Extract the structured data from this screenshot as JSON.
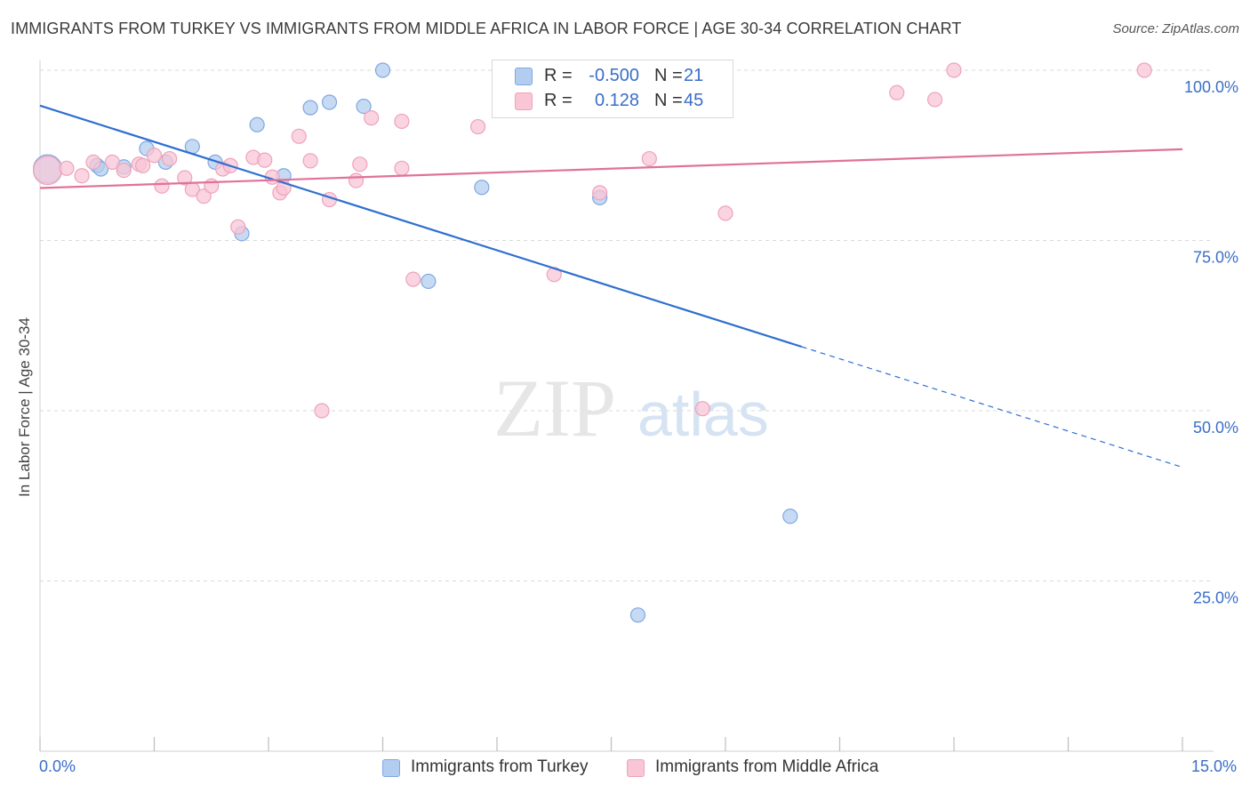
{
  "header": {
    "title": "IMMIGRANTS FROM TURKEY VS IMMIGRANTS FROM MIDDLE AFRICA IN LABOR FORCE | AGE 30-34 CORRELATION CHART",
    "source": "Source: ZipAtlas.com"
  },
  "watermark": {
    "zip": "ZIP",
    "atlas": "atlas"
  },
  "legend": {
    "r_label": "R =",
    "n_label": "N =",
    "rows": [
      {
        "r": "-0.500",
        "n": "21"
      },
      {
        "r": "0.128",
        "n": "45"
      }
    ]
  },
  "colors": {
    "blue_fill": "#b3cdf0",
    "blue_stroke": "#7fa8e0",
    "blue_line": "#2f6fd0",
    "pink_fill": "#f8c6d5",
    "pink_stroke": "#eea3bb",
    "pink_line": "#e0729a",
    "grid": "#d9d9d9",
    "axis_text": "#3a6ec9"
  },
  "chart_data": {
    "type": "scatter",
    "title": "IMMIGRANTS FROM TURKEY VS IMMIGRANTS FROM MIDDLE AFRICA IN LABOR FORCE | AGE 30-34 CORRELATION CHART",
    "xlabel": "",
    "ylabel": "In Labor Force | Age 30-34",
    "xlim": [
      0,
      15
    ],
    "ylim": [
      0,
      100
    ],
    "x_tick_labels": [
      "0.0%",
      "15.0%"
    ],
    "y_ticks": [
      25,
      50,
      75,
      100
    ],
    "y_tick_labels": [
      "25.0%",
      "50.0%",
      "75.0%",
      "100.0%"
    ],
    "grid": true,
    "series": [
      {
        "name": "Immigrants from Turkey",
        "color": "blue",
        "r": -0.5,
        "n": 21,
        "points": [
          {
            "x": 0.1,
            "y": 85.5,
            "big": true
          },
          {
            "x": 0.75,
            "y": 86.0
          },
          {
            "x": 0.8,
            "y": 85.5
          },
          {
            "x": 1.1,
            "y": 85.8
          },
          {
            "x": 1.4,
            "y": 88.5
          },
          {
            "x": 1.65,
            "y": 86.5
          },
          {
            "x": 2.0,
            "y": 88.8
          },
          {
            "x": 2.3,
            "y": 86.5
          },
          {
            "x": 2.65,
            "y": 76.0
          },
          {
            "x": 2.85,
            "y": 92.0
          },
          {
            "x": 3.2,
            "y": 84.5
          },
          {
            "x": 3.55,
            "y": 94.5
          },
          {
            "x": 3.8,
            "y": 95.3
          },
          {
            "x": 4.25,
            "y": 94.7
          },
          {
            "x": 4.5,
            "y": 100.0
          },
          {
            "x": 5.1,
            "y": 69.0
          },
          {
            "x": 5.8,
            "y": 82.8
          },
          {
            "x": 7.35,
            "y": 81.3
          },
          {
            "x": 8.5,
            "y": 100.0
          },
          {
            "x": 9.85,
            "y": 34.5
          },
          {
            "x": 7.85,
            "y": 20.0
          }
        ],
        "trend": {
          "x0": 0,
          "y0": 94.8,
          "x1": 10.0,
          "y1": 59.4,
          "dash_x1": 15,
          "dash_y1": 41.7
        }
      },
      {
        "name": "Immigrants from Middle Africa",
        "color": "pink",
        "r": 0.128,
        "n": 45,
        "points": [
          {
            "x": 0.1,
            "y": 85.3,
            "big": true
          },
          {
            "x": 0.35,
            "y": 85.6
          },
          {
            "x": 0.55,
            "y": 84.5
          },
          {
            "x": 0.7,
            "y": 86.5
          },
          {
            "x": 0.95,
            "y": 86.5
          },
          {
            "x": 1.1,
            "y": 85.3
          },
          {
            "x": 1.3,
            "y": 86.2
          },
          {
            "x": 1.35,
            "y": 86.0
          },
          {
            "x": 1.5,
            "y": 87.5
          },
          {
            "x": 1.7,
            "y": 87.0
          },
          {
            "x": 1.6,
            "y": 83.0
          },
          {
            "x": 1.9,
            "y": 84.2
          },
          {
            "x": 2.0,
            "y": 82.5
          },
          {
            "x": 2.15,
            "y": 81.5
          },
          {
            "x": 2.25,
            "y": 83.0
          },
          {
            "x": 2.4,
            "y": 85.5
          },
          {
            "x": 2.5,
            "y": 86.0
          },
          {
            "x": 2.6,
            "y": 77.0
          },
          {
            "x": 2.8,
            "y": 87.2
          },
          {
            "x": 2.95,
            "y": 86.8
          },
          {
            "x": 3.05,
            "y": 84.3
          },
          {
            "x": 3.15,
            "y": 82.0
          },
          {
            "x": 3.2,
            "y": 82.7
          },
          {
            "x": 3.4,
            "y": 90.3
          },
          {
            "x": 3.55,
            "y": 86.7
          },
          {
            "x": 3.7,
            "y": 50.0
          },
          {
            "x": 3.8,
            "y": 81.0
          },
          {
            "x": 4.15,
            "y": 83.8
          },
          {
            "x": 4.2,
            "y": 86.2
          },
          {
            "x": 4.35,
            "y": 93.0
          },
          {
            "x": 4.75,
            "y": 85.6
          },
          {
            "x": 4.75,
            "y": 92.5
          },
          {
            "x": 4.9,
            "y": 69.3
          },
          {
            "x": 5.75,
            "y": 91.7
          },
          {
            "x": 6.75,
            "y": 70.0
          },
          {
            "x": 7.35,
            "y": 82.0
          },
          {
            "x": 8.0,
            "y": 87.0
          },
          {
            "x": 8.5,
            "y": 95.0
          },
          {
            "x": 8.7,
            "y": 50.3
          },
          {
            "x": 8.9,
            "y": 100.0
          },
          {
            "x": 9.0,
            "y": 79.0
          },
          {
            "x": 11.25,
            "y": 96.7
          },
          {
            "x": 11.75,
            "y": 95.7
          },
          {
            "x": 12.0,
            "y": 100.0
          },
          {
            "x": 14.5,
            "y": 100.0
          }
        ],
        "trend": {
          "x0": 0,
          "y0": 82.7,
          "x1": 15,
          "y1": 88.4
        }
      }
    ]
  },
  "bottom_legend": {
    "items": [
      "Immigrants from Turkey",
      "Immigrants from Middle Africa"
    ]
  }
}
